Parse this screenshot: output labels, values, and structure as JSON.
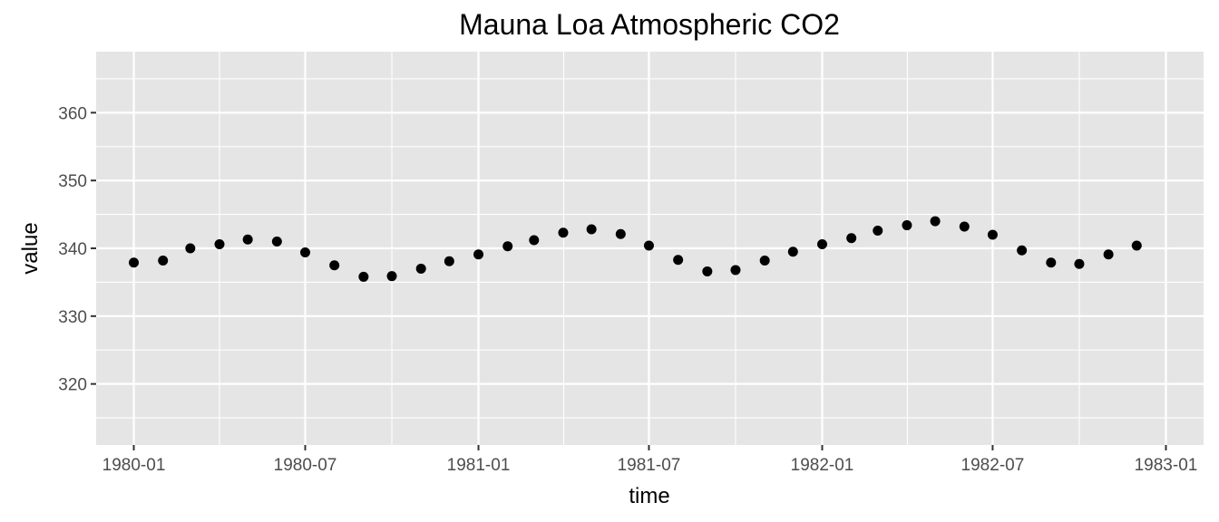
{
  "chart_data": {
    "type": "scatter",
    "title": "Mauna Loa Atmospheric CO2",
    "xlabel": "time",
    "ylabel": "value",
    "x_tick_labels": [
      "1980-01",
      "1980-07",
      "1981-01",
      "1981-07",
      "1982-01",
      "1982-07",
      "1983-01"
    ],
    "y_ticks": [
      320,
      330,
      340,
      350,
      360
    ],
    "ylim": [
      311,
      369
    ],
    "xlim": [
      "1979-11-22",
      "1983-02-10"
    ],
    "grid": true,
    "panel_background": "#e5e5e5",
    "grid_color": "#ffffff",
    "point_color": "#000000",
    "points": [
      {
        "x": "1980-01",
        "y": 337.9
      },
      {
        "x": "1980-02",
        "y": 338.2
      },
      {
        "x": "1980-03",
        "y": 340.0
      },
      {
        "x": "1980-04",
        "y": 340.6
      },
      {
        "x": "1980-05",
        "y": 341.3
      },
      {
        "x": "1980-06",
        "y": 341.0
      },
      {
        "x": "1980-07",
        "y": 339.4
      },
      {
        "x": "1980-08",
        "y": 337.5
      },
      {
        "x": "1980-09",
        "y": 335.8
      },
      {
        "x": "1980-10",
        "y": 335.9
      },
      {
        "x": "1980-11",
        "y": 337.0
      },
      {
        "x": "1980-12",
        "y": 338.1
      },
      {
        "x": "1981-01",
        "y": 339.1
      },
      {
        "x": "1981-02",
        "y": 340.3
      },
      {
        "x": "1981-03",
        "y": 341.2
      },
      {
        "x": "1981-04",
        "y": 342.3
      },
      {
        "x": "1981-05",
        "y": 342.8
      },
      {
        "x": "1981-06",
        "y": 342.1
      },
      {
        "x": "1981-07",
        "y": 340.4
      },
      {
        "x": "1981-08",
        "y": 338.3
      },
      {
        "x": "1981-09",
        "y": 336.6
      },
      {
        "x": "1981-10",
        "y": 336.8
      },
      {
        "x": "1981-11",
        "y": 338.2
      },
      {
        "x": "1981-12",
        "y": 339.5
      },
      {
        "x": "1982-01",
        "y": 340.6
      },
      {
        "x": "1982-02",
        "y": 341.5
      },
      {
        "x": "1982-03",
        "y": 342.6
      },
      {
        "x": "1982-04",
        "y": 343.4
      },
      {
        "x": "1982-05",
        "y": 344.0
      },
      {
        "x": "1982-06",
        "y": 343.2
      },
      {
        "x": "1982-07",
        "y": 342.0
      },
      {
        "x": "1982-08",
        "y": 339.7
      },
      {
        "x": "1982-09",
        "y": 337.9
      },
      {
        "x": "1982-10",
        "y": 337.7
      },
      {
        "x": "1982-11",
        "y": 339.1
      },
      {
        "x": "1982-12",
        "y": 340.4
      }
    ]
  }
}
